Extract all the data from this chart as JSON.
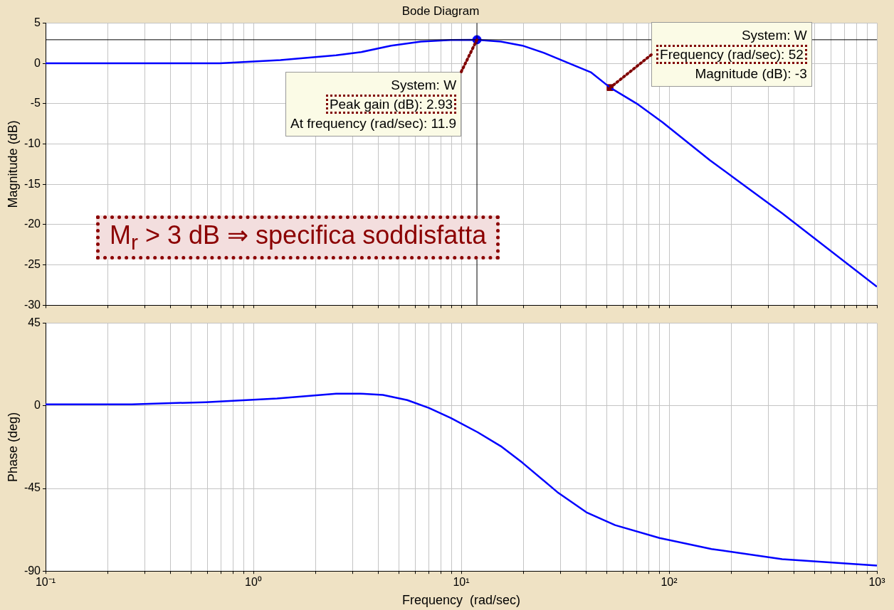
{
  "chart_data": [
    {
      "type": "line",
      "title": "Bode Diagram",
      "ylabel": "Magnitude (dB)",
      "log": "x",
      "grid": true,
      "tick_labels": "y",
      "marker": "none",
      "x": [
        0.1,
        0.69,
        1.35,
        2.5,
        3.3,
        4.6,
        6.4,
        8.9,
        11.9,
        15.5,
        19.7,
        25,
        31.7,
        42,
        52,
        70,
        93,
        157,
        350,
        1000
      ],
      "series": [
        {
          "color": "#0000ff",
          "values": [
            0,
            0,
            0.4,
            1.0,
            1.4,
            2.2,
            2.7,
            2.9,
            2.93,
            2.7,
            2.2,
            1.3,
            0.2,
            -1.1,
            -3,
            -5,
            -7.3,
            -12,
            -18.6,
            -27.7
          ]
        },
        {
          "type": "scatter",
          "marker": "circle",
          "color": "#0000ff",
          "x": [
            11.9
          ],
          "values": [
            2.93
          ]
        },
        {
          "type": "scatter",
          "marker": "square",
          "color": "#800000",
          "x": [
            52
          ],
          "values": [
            -3
          ]
        }
      ],
      "xlim": [
        0.1,
        1000
      ],
      "ylim": [
        -30,
        5
      ],
      "yticks": [
        -30,
        -25,
        -20,
        -15,
        -10,
        -5,
        0,
        5
      ],
      "xticks": [
        {
          "value": 0.1,
          "label": null
        },
        {
          "value": 0.2,
          "label": null
        },
        {
          "value": 0.3,
          "label": null
        },
        {
          "value": 0.4,
          "label": null
        },
        {
          "value": 0.5,
          "label": null
        },
        {
          "value": 0.6,
          "label": null
        },
        {
          "value": 0.7,
          "label": null
        },
        {
          "value": 0.8,
          "label": null
        },
        {
          "value": 0.9,
          "label": null
        },
        {
          "value": 1,
          "label": null
        },
        {
          "value": 2,
          "label": null
        },
        {
          "value": 3,
          "label": null
        },
        {
          "value": 4,
          "label": null
        },
        {
          "value": 5,
          "label": null
        },
        {
          "value": 6,
          "label": null
        },
        {
          "value": 7,
          "label": null
        },
        {
          "value": 8,
          "label": null
        },
        {
          "value": 9,
          "label": null
        },
        {
          "value": 10,
          "label": null
        },
        {
          "value": 20,
          "label": null
        },
        {
          "value": 30,
          "label": null
        },
        {
          "value": 40,
          "label": null
        },
        {
          "value": 50,
          "label": null
        },
        {
          "value": 60,
          "label": null
        },
        {
          "value": 70,
          "label": null
        },
        {
          "value": 80,
          "label": null
        },
        {
          "value": 90,
          "label": null
        },
        {
          "value": 100,
          "label": null
        },
        {
          "value": 200,
          "label": null
        },
        {
          "value": 300,
          "label": null
        },
        {
          "value": 400,
          "label": null
        },
        {
          "value": 500,
          "label": null
        },
        {
          "value": 600,
          "label": null
        },
        {
          "value": 700,
          "label": null
        },
        {
          "value": 800,
          "label": null
        },
        {
          "value": 900,
          "label": null
        },
        {
          "value": 1000,
          "label": null
        }
      ],
      "ref_lines": [
        {
          "axis": "x",
          "value": 11.9,
          "color": "#000000"
        },
        {
          "axis": "y",
          "value": 2.93,
          "color": "#000000"
        }
      ],
      "annotations": [
        {
          "text": "System: W\nPeak gain (dB): 2.93\nAt frequency (rad/sec): 11.9",
          "x": 11.9,
          "y": 2.93
        },
        {
          "text": "System: W\nFrequency (rad/sec): 52\nMagnitude (dB): -3",
          "x": 52,
          "y": -3
        },
        "M$_{r}$ > 3 dB ⇒ specifica soddisfatta"
      ]
    },
    {
      "type": "line",
      "xlabel": "Frequency  (rad/sec)",
      "ylabel": "Phase (deg)",
      "log": "x",
      "grid": true,
      "marker": "none",
      "x": [
        0.1,
        0.26,
        0.59,
        1.3,
        2.5,
        3.3,
        4.2,
        5.5,
        7,
        8.9,
        12,
        15.5,
        19.7,
        29,
        40,
        55,
        90,
        160,
        350,
        1000
      ],
      "series": [
        {
          "color": "#0000ff",
          "values": [
            0.8,
            0.8,
            2,
            4,
            6.6,
            6.6,
            5.9,
            3.1,
            -1.2,
            -6.6,
            -14.4,
            -22,
            -31,
            -47,
            -58,
            -65,
            -72,
            -78,
            -83.5,
            -87
          ]
        }
      ],
      "xlim": [
        0.1,
        1000
      ],
      "ylim": [
        -90,
        45
      ],
      "yticks": [
        -90,
        -45,
        0,
        45
      ],
      "xticks": [
        {
          "value": 0.1,
          "label": "10⁻¹"
        },
        {
          "value": 0.2,
          "label": null
        },
        {
          "value": 0.3,
          "label": null
        },
        {
          "value": 0.4,
          "label": null
        },
        {
          "value": 0.5,
          "label": null
        },
        {
          "value": 0.6,
          "label": null
        },
        {
          "value": 0.7,
          "label": null
        },
        {
          "value": 0.8,
          "label": null
        },
        {
          "value": 0.9,
          "label": null
        },
        {
          "value": 1,
          "label": "10⁰"
        },
        {
          "value": 2,
          "label": null
        },
        {
          "value": 3,
          "label": null
        },
        {
          "value": 4,
          "label": null
        },
        {
          "value": 5,
          "label": null
        },
        {
          "value": 6,
          "label": null
        },
        {
          "value": 7,
          "label": null
        },
        {
          "value": 8,
          "label": null
        },
        {
          "value": 9,
          "label": null
        },
        {
          "value": 10,
          "label": "10¹"
        },
        {
          "value": 20,
          "label": null
        },
        {
          "value": 30,
          "label": null
        },
        {
          "value": 40,
          "label": null
        },
        {
          "value": 50,
          "label": null
        },
        {
          "value": 60,
          "label": null
        },
        {
          "value": 70,
          "label": null
        },
        {
          "value": 80,
          "label": null
        },
        {
          "value": 90,
          "label": null
        },
        {
          "value": 100,
          "label": "10²"
        },
        {
          "value": 200,
          "label": null
        },
        {
          "value": 300,
          "label": null
        },
        {
          "value": 400,
          "label": null
        },
        {
          "value": 500,
          "label": null
        },
        {
          "value": 600,
          "label": null
        },
        {
          "value": 700,
          "label": null
        },
        {
          "value": 800,
          "label": null
        },
        {
          "value": 900,
          "label": null
        },
        {
          "value": 1000,
          "label": "10³"
        }
      ]
    }
  ]
}
